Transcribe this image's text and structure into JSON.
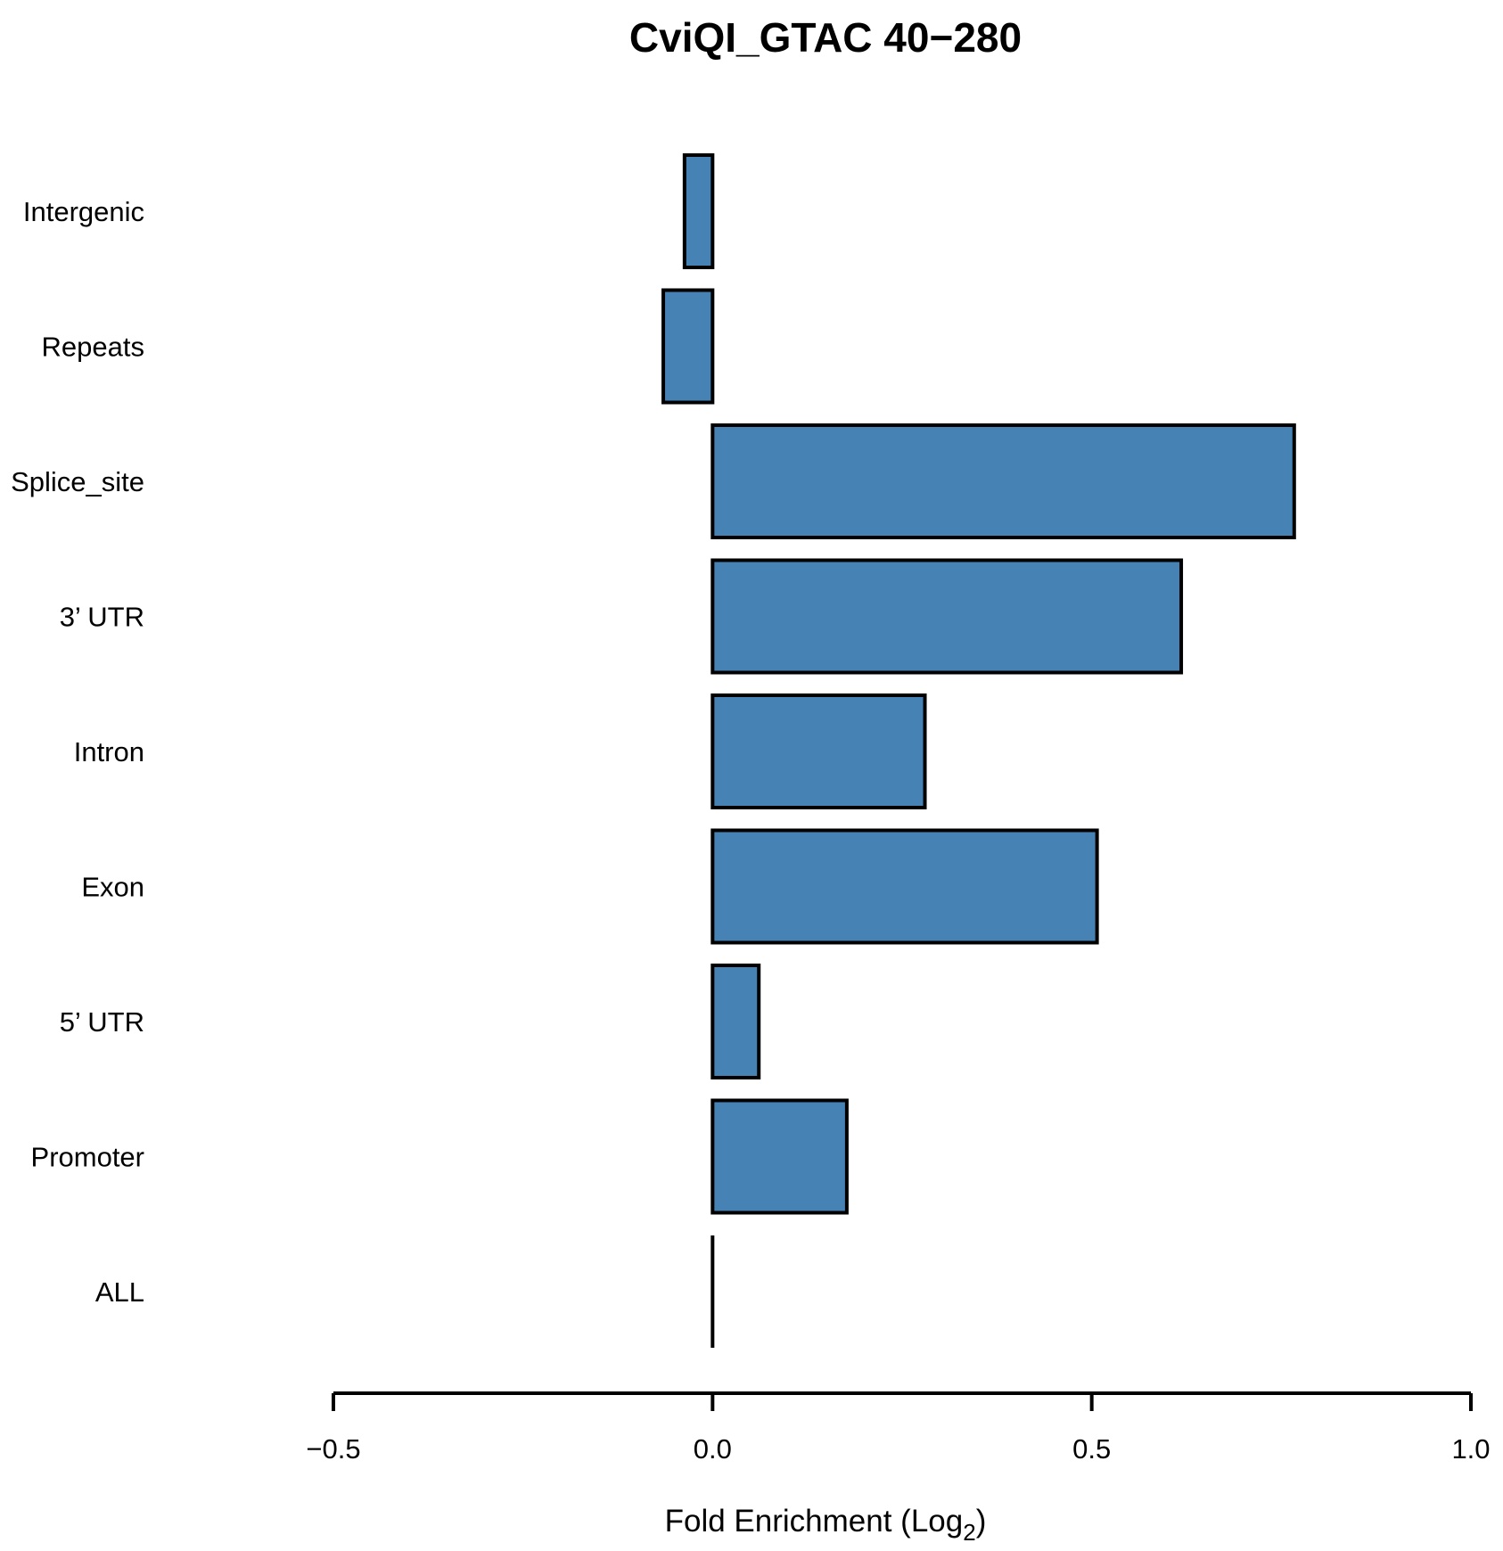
{
  "chart_data": {
    "type": "bar",
    "orientation": "horizontal",
    "title": "CviQI_GTAC 40−280",
    "xlabel": "Fold Enrichment (Log",
    "xlabel_subscript": "2",
    "xlabel_suffix": ")",
    "ylabel": "",
    "categories": [
      "Intergenic",
      "Repeats",
      "Splice_site",
      "3’ UTR",
      "Intron",
      "Exon",
      "5’ UTR",
      "Promoter",
      "ALL"
    ],
    "values": [
      -0.037,
      -0.065,
      0.767,
      0.618,
      0.28,
      0.507,
      0.061,
      0.177,
      0.0
    ],
    "xlim": [
      -0.5,
      1.0
    ],
    "xticks": [
      -0.5,
      0.0,
      0.5,
      1.0
    ],
    "xtick_labels": [
      "−0.5",
      "0.0",
      "0.5",
      "1.0"
    ],
    "bar_color": "#4682B4",
    "bar_edge_color": "#000000",
    "grid": false,
    "legend": "none"
  }
}
